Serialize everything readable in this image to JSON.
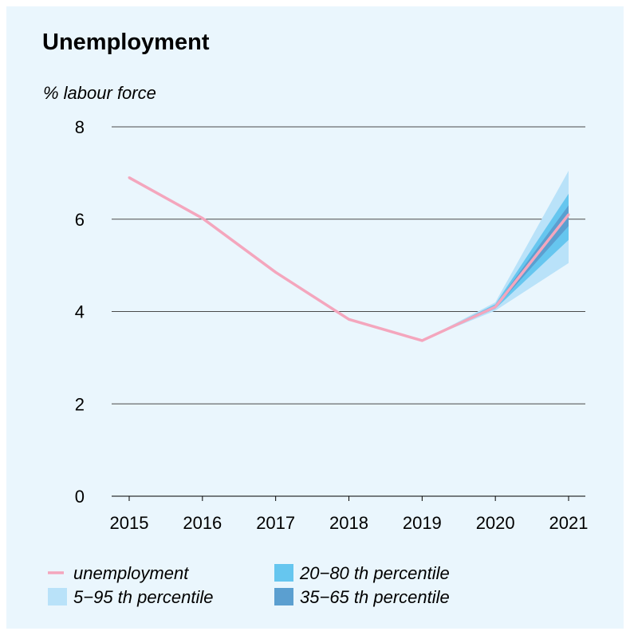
{
  "chart_data": {
    "type": "line",
    "title": "Unemployment",
    "ylabel": "% labour force",
    "xlabel": "",
    "x": [
      "2015",
      "2016",
      "2017",
      "2018",
      "2019",
      "2020",
      "2021"
    ],
    "ylim": [
      0,
      8
    ],
    "yticks": [
      "0",
      "2",
      "4",
      "6",
      "8"
    ],
    "grid": true,
    "series": [
      {
        "name": "unemployment",
        "color": "#f4a6bd",
        "values": [
          6.9,
          6.02,
          4.85,
          3.83,
          3.37,
          4.1,
          6.1
        ]
      }
    ],
    "bands": [
      {
        "name": "5−95 th percentile",
        "color": "#b9e2f9",
        "x": [
          "2019",
          "2020",
          "2021"
        ],
        "lower": [
          3.37,
          4.02,
          5.05
        ],
        "upper": [
          3.37,
          4.2,
          7.05
        ]
      },
      {
        "name": "20−80 th percentile",
        "color": "#66c6ef",
        "x": [
          "2019",
          "2020",
          "2021"
        ],
        "lower": [
          3.37,
          4.06,
          5.55
        ],
        "upper": [
          3.37,
          4.16,
          6.55
        ]
      },
      {
        "name": "35−65 th percentile",
        "color": "#5b9fd0",
        "x": [
          "2019",
          "2020",
          "2021"
        ],
        "lower": [
          3.37,
          4.08,
          5.85
        ],
        "upper": [
          3.37,
          4.13,
          6.3
        ]
      }
    ],
    "legend": {
      "placement": "bottom",
      "items": [
        {
          "label": "unemployment",
          "kind": "line",
          "color": "#f4a6bd"
        },
        {
          "label": "20−80 th percentile",
          "kind": "box",
          "color": "#66c6ef"
        },
        {
          "label": "5−95 th percentile",
          "kind": "box",
          "color": "#b9e2f9"
        },
        {
          "label": "35−65 th percentile",
          "kind": "box",
          "color": "#5b9fd0"
        }
      ]
    }
  }
}
